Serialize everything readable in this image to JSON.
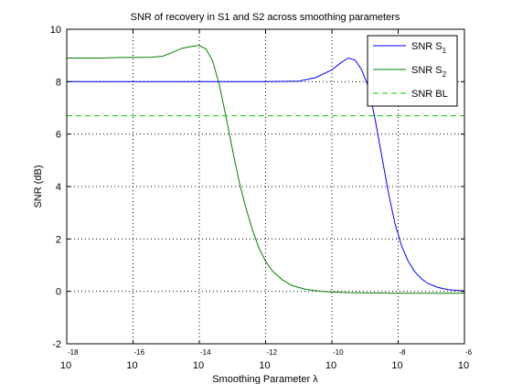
{
  "chart_data": {
    "type": "line",
    "title": "SNR of recovery in S1 and S2 across smoothing parameters",
    "xlabel": "Smoothing Parameter λ",
    "ylabel": "SNR (dB)",
    "x_scale": "log",
    "xlim_exponent": [
      -18,
      -6
    ],
    "x_ticks": [
      {
        "base": "10",
        "exp": "-18",
        "e": -18
      },
      {
        "base": "10",
        "exp": "-16",
        "e": -16
      },
      {
        "base": "10",
        "exp": "-14",
        "e": -14
      },
      {
        "base": "10",
        "exp": "-12",
        "e": -12
      },
      {
        "base": "10",
        "exp": "-10",
        "e": -10
      },
      {
        "base": "10",
        "exp": "-8",
        "e": -8
      },
      {
        "base": "10",
        "exp": "-6",
        "e": -6
      }
    ],
    "ylim": [
      -2,
      10
    ],
    "y_ticks": [
      {
        "v": -2,
        "label": "-2"
      },
      {
        "v": 0,
        "label": "0"
      },
      {
        "v": 2,
        "label": "2"
      },
      {
        "v": 4,
        "label": "4"
      },
      {
        "v": 6,
        "label": "6"
      },
      {
        "v": 8,
        "label": "8"
      },
      {
        "v": 10,
        "label": "10"
      }
    ],
    "grid": "dotted",
    "legend_position": "top-right",
    "series": [
      {
        "name": "SNR S",
        "sub": "1",
        "color": "#0000ff",
        "style": "solid",
        "points": [
          [
            -18,
            8.0
          ],
          [
            -16,
            8.0
          ],
          [
            -14,
            8.0
          ],
          [
            -12,
            8.0
          ],
          [
            -11,
            8.02
          ],
          [
            -10.5,
            8.15
          ],
          [
            -10,
            8.45
          ],
          [
            -9.7,
            8.75
          ],
          [
            -9.5,
            8.9
          ],
          [
            -9.3,
            8.82
          ],
          [
            -9.1,
            8.45
          ],
          [
            -8.9,
            7.8
          ],
          [
            -8.7,
            6.6
          ],
          [
            -8.5,
            5.2
          ],
          [
            -8.3,
            3.8
          ],
          [
            -8.1,
            2.6
          ],
          [
            -7.9,
            1.75
          ],
          [
            -7.7,
            1.15
          ],
          [
            -7.5,
            0.75
          ],
          [
            -7.3,
            0.48
          ],
          [
            -7.1,
            0.3
          ],
          [
            -6.8,
            0.15
          ],
          [
            -6.5,
            0.07
          ],
          [
            -6.2,
            0.03
          ],
          [
            -6,
            0.02
          ]
        ]
      },
      {
        "name": "SNR S",
        "sub": "2",
        "color": "#008000",
        "style": "solid",
        "points": [
          [
            -18,
            8.9
          ],
          [
            -17,
            8.9
          ],
          [
            -16.5,
            8.92
          ],
          [
            -16,
            8.93
          ],
          [
            -15.5,
            8.93
          ],
          [
            -15.1,
            8.97
          ],
          [
            -14.8,
            9.12
          ],
          [
            -14.5,
            9.28
          ],
          [
            -14.2,
            9.35
          ],
          [
            -14.0,
            9.38
          ],
          [
            -13.8,
            9.25
          ],
          [
            -13.6,
            8.8
          ],
          [
            -13.4,
            7.9
          ],
          [
            -13.2,
            6.7
          ],
          [
            -13.0,
            5.4
          ],
          [
            -12.8,
            4.2
          ],
          [
            -12.6,
            3.2
          ],
          [
            -12.4,
            2.35
          ],
          [
            -12.2,
            1.65
          ],
          [
            -12.0,
            1.15
          ],
          [
            -11.8,
            0.78
          ],
          [
            -11.5,
            0.45
          ],
          [
            -11.2,
            0.22
          ],
          [
            -10.8,
            0.08
          ],
          [
            -10.3,
            0.0
          ],
          [
            -9.5,
            -0.05
          ],
          [
            -8,
            -0.07
          ],
          [
            -6,
            -0.07
          ]
        ]
      },
      {
        "name": "SNR BL",
        "sub": "",
        "color": "#00cc00",
        "style": "dashed",
        "points": [
          [
            -18,
            6.7
          ],
          [
            -6,
            6.7
          ]
        ]
      }
    ]
  }
}
